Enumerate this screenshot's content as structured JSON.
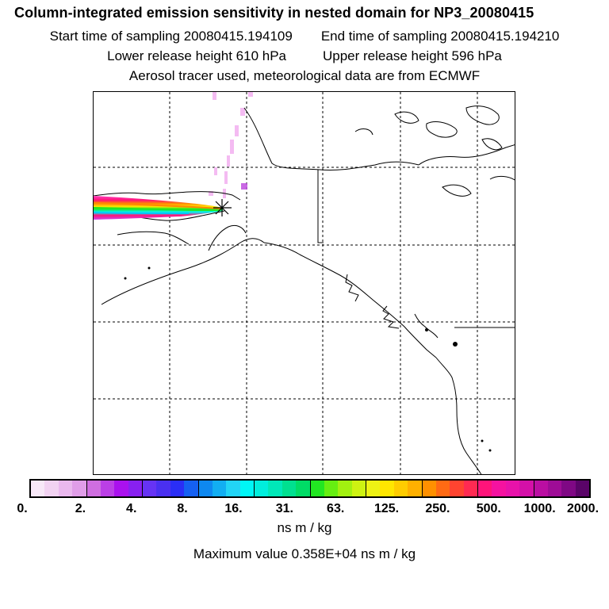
{
  "header": {
    "title": "Column-integrated emission sensitivity in nested domain for NP3_20080415",
    "start_label": "Start time of sampling 20080415.194109",
    "end_label": "End time of sampling 20080415.194210",
    "lower_label": "Lower release height  610 hPa",
    "upper_label": "Upper release height  596 hPa",
    "info": "Aerosol tracer used, meteorological data are from ECMWF"
  },
  "map": {
    "region": "Alaska, western Canada, Pacific Northwest",
    "release_marker": "release-point-star",
    "plume_direction": "westward from release point"
  },
  "colorbar": {
    "colors": [
      "#f8e8f8",
      "#f2d2f2",
      "#eab8ee",
      "#e09de8",
      "#cf6ee0",
      "#bb3fe6",
      "#aa11ee",
      "#8820f0",
      "#6633f4",
      "#4a30f0",
      "#2a2ef6",
      "#1560f2",
      "#0e88f0",
      "#12aef2",
      "#22d4f6",
      "#00f6f6",
      "#00eedd",
      "#00e8b8",
      "#00e090",
      "#00dc66",
      "#22e622",
      "#66ee11",
      "#a2f010",
      "#cef212",
      "#eef214",
      "#ffe600",
      "#ffcc00",
      "#ffb000",
      "#ff9000",
      "#ff6a14",
      "#ff4430",
      "#ff2a52",
      "#ff147a",
      "#f512a0",
      "#e812aa",
      "#d410a8",
      "#ba0ea2",
      "#9e0c96",
      "#7f0884",
      "#5a0468"
    ],
    "tick_labels": [
      "0.",
      "2.",
      "4.",
      "8.",
      "16.",
      "31.",
      "63.",
      "125.",
      "250.",
      "500.",
      "1000.",
      "2000."
    ],
    "units": "ns m / kg",
    "max_label": "Maximum value  0.358E+04 ns m / kg"
  }
}
